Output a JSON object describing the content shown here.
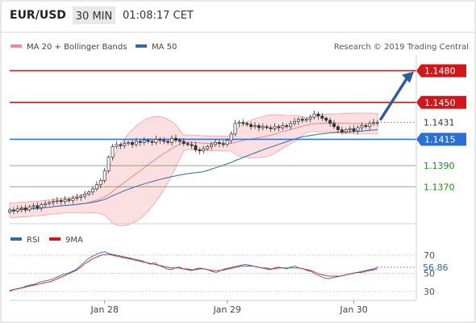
{
  "header": {
    "pair": "EUR/USD",
    "timeframe": "30 MIN",
    "time": "01:08:17 CET"
  },
  "legend": {
    "ma20_bb": "MA 20 + Bollinger Bands",
    "ma50": "MA 50",
    "credit": "Research © 2019 Trading Central"
  },
  "rsi_legend": {
    "rsi": "RSI",
    "ma9": "9MA"
  },
  "colors": {
    "resistance": "#d0181b",
    "support": "#1f8a1f",
    "pivot": "#2a6fd3",
    "ma50": "#3468a8",
    "bollinger": "#f5a3a9",
    "arrow": "#2e5d9f",
    "candle": "#333333"
  },
  "chart_data": [
    {
      "type": "candlestick",
      "ylim": [
        1.1335,
        1.1495
      ],
      "x_tick_labels": [
        "Jan 28",
        "Jan 29",
        "Jan 30"
      ],
      "levels": [
        {
          "label": "1.1480",
          "value": 1.148,
          "kind": "resistance"
        },
        {
          "label": "1.1450",
          "value": 1.145,
          "kind": "resistance"
        },
        {
          "label": "1.1415",
          "value": 1.1415,
          "kind": "pivot"
        },
        {
          "label": "1.1390",
          "value": 1.139,
          "kind": "support"
        },
        {
          "label": "1.1370",
          "value": 1.137,
          "kind": "support"
        }
      ],
      "current_price": {
        "label": "1.1431",
        "value": 1.1431
      },
      "series": [
        {
          "name": "MA 20 + Bollinger Bands",
          "type": "band"
        },
        {
          "name": "MA 50",
          "type": "line"
        }
      ],
      "close": [
        1.1348,
        1.1347,
        1.1349,
        1.135,
        1.1348,
        1.1351,
        1.1352,
        1.135,
        1.1353,
        1.1354,
        1.1355,
        1.1356,
        1.1357,
        1.1356,
        1.1358,
        1.1357,
        1.1359,
        1.136,
        1.1361,
        1.1363,
        1.1365,
        1.1368,
        1.1372,
        1.1376,
        1.1385,
        1.1398,
        1.1408,
        1.141,
        1.1409,
        1.1411,
        1.1412,
        1.141,
        1.1413,
        1.1412,
        1.1414,
        1.1413,
        1.1412,
        1.1415,
        1.1414,
        1.1413,
        1.1412,
        1.1416,
        1.1414,
        1.1413,
        1.1411,
        1.141,
        1.1409,
        1.1405,
        1.1404,
        1.1406,
        1.1408,
        1.141,
        1.1412,
        1.1411,
        1.141,
        1.1414,
        1.142,
        1.143,
        1.1431,
        1.143,
        1.1429,
        1.1427,
        1.1428,
        1.1426,
        1.1427,
        1.1426,
        1.1425,
        1.1427,
        1.1426,
        1.1428,
        1.1427,
        1.143,
        1.1432,
        1.1434,
        1.1433,
        1.1434,
        1.1436,
        1.1439,
        1.1437,
        1.1435,
        1.1433,
        1.143,
        1.1427,
        1.1424,
        1.1422,
        1.1424,
        1.1425,
        1.1423,
        1.1426,
        1.1428,
        1.1427,
        1.143,
        1.1431,
        1.1431
      ]
    },
    {
      "type": "line",
      "title": "RSI",
      "ylim": [
        20,
        80
      ],
      "y_tick_labels": [
        "70",
        "50",
        "30"
      ],
      "current_value": {
        "label": "56.86",
        "value": 56.86
      },
      "series": [
        {
          "name": "RSI",
          "values": [
            30,
            32,
            33,
            34,
            36,
            37,
            38,
            40,
            41,
            42,
            43,
            45,
            47,
            49,
            50,
            52,
            54,
            58,
            62,
            66,
            69,
            71,
            73,
            74,
            72,
            71,
            70,
            69,
            68,
            67,
            66,
            65,
            64,
            62,
            60,
            62,
            59,
            57,
            55,
            54,
            56,
            57,
            55,
            54,
            53,
            55,
            56,
            55,
            54,
            52,
            51,
            53,
            55,
            56,
            57,
            58,
            59,
            60,
            59,
            58,
            57,
            56,
            55,
            54,
            56,
            57,
            56,
            55,
            57,
            58,
            56,
            55,
            53,
            52,
            49,
            47,
            45,
            44,
            45,
            46,
            47,
            48,
            49,
            50,
            51,
            52,
            53,
            54,
            55,
            56.86
          ]
        },
        {
          "name": "9MA",
          "values": [
            31,
            32,
            33,
            34,
            35,
            36,
            37,
            38,
            39,
            40,
            41,
            43,
            45,
            47,
            49,
            51,
            53,
            56,
            60,
            63,
            66,
            68,
            70,
            71,
            71,
            70,
            69,
            68,
            67,
            66,
            65,
            64,
            63,
            62,
            61,
            60,
            59,
            58,
            57,
            56,
            56,
            56,
            55,
            55,
            54,
            54,
            55,
            55,
            54,
            53,
            53,
            53,
            54,
            55,
            56,
            57,
            58,
            58,
            58,
            58,
            57,
            56,
            56,
            55,
            55,
            56,
            56,
            56,
            56,
            56,
            56,
            55,
            54,
            53,
            51,
            49,
            48,
            47,
            47,
            47,
            47,
            48,
            49,
            50,
            51,
            51,
            52,
            53,
            54,
            55
          ]
        }
      ]
    }
  ]
}
